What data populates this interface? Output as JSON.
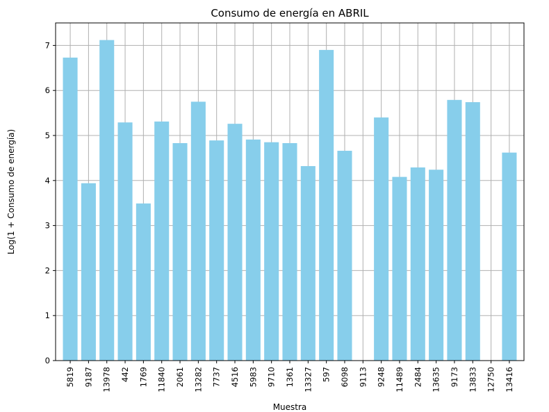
{
  "chart_data": {
    "type": "bar",
    "title": "Consumo de energía en ABRIL",
    "xlabel": "Muestra",
    "ylabel": "Log(1 + Consumo de energía)",
    "categories": [
      "5819",
      "9187",
      "13978",
      "442",
      "1769",
      "11840",
      "2061",
      "13282",
      "7737",
      "4516",
      "5983",
      "9710",
      "1361",
      "13327",
      "597",
      "6098",
      "9113",
      "9248",
      "11489",
      "2484",
      "13635",
      "9173",
      "13833",
      "12750",
      "13416"
    ],
    "values": [
      6.73,
      3.94,
      7.12,
      5.29,
      3.49,
      5.31,
      4.83,
      5.75,
      4.89,
      5.26,
      4.91,
      4.85,
      4.83,
      4.32,
      6.9,
      4.66,
      0,
      5.4,
      4.08,
      4.29,
      4.24,
      5.79,
      5.74,
      0,
      4.62
    ],
    "ylim": [
      0,
      7.5
    ],
    "yticks": [
      0,
      1,
      2,
      3,
      4,
      5,
      6,
      7
    ],
    "grid": true,
    "bar_color": "#87CEEB",
    "grid_color": "#b0b0b0"
  }
}
